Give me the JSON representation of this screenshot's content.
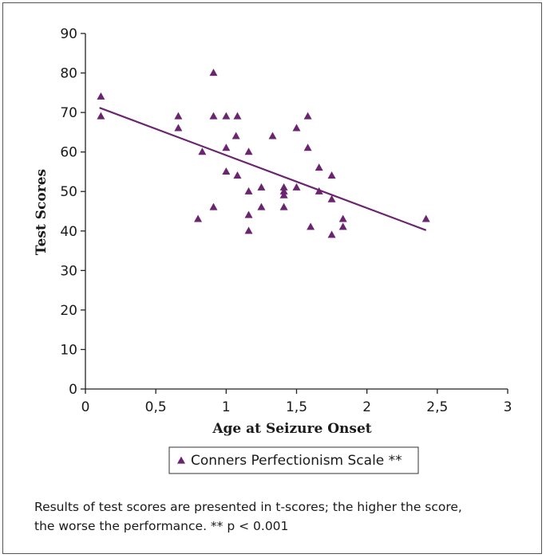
{
  "chart_data": {
    "type": "scatter",
    "xlabel": "Age at Seizure Onset",
    "ylabel": "Test Scores",
    "xlim": [
      0,
      3
    ],
    "ylim": [
      0,
      90
    ],
    "xticks": [
      "0",
      "0,5",
      "1",
      "1,5",
      "2",
      "2,5",
      "3"
    ],
    "yticks": [
      "0",
      "10",
      "20",
      "30",
      "40",
      "50",
      "60",
      "70",
      "80",
      "90"
    ],
    "grid": false,
    "legend_position": "bottom",
    "series": [
      {
        "name": "Conners Perfectionism Scale **",
        "color": "#6b2470",
        "marker": "triangle",
        "points": [
          [
            0.11,
            74
          ],
          [
            0.11,
            69
          ],
          [
            0.66,
            69
          ],
          [
            0.66,
            66
          ],
          [
            0.8,
            43
          ],
          [
            0.83,
            60
          ],
          [
            0.91,
            80
          ],
          [
            0.91,
            69
          ],
          [
            0.91,
            46
          ],
          [
            1.0,
            69
          ],
          [
            1.0,
            61
          ],
          [
            1.0,
            55
          ],
          [
            1.07,
            64
          ],
          [
            1.08,
            69
          ],
          [
            1.08,
            54
          ],
          [
            1.16,
            60
          ],
          [
            1.16,
            50
          ],
          [
            1.16,
            44
          ],
          [
            1.16,
            40
          ],
          [
            1.25,
            51
          ],
          [
            1.25,
            46
          ],
          [
            1.33,
            64
          ],
          [
            1.41,
            51
          ],
          [
            1.41,
            50
          ],
          [
            1.41,
            49
          ],
          [
            1.41,
            46
          ],
          [
            1.5,
            66
          ],
          [
            1.5,
            51
          ],
          [
            1.58,
            69
          ],
          [
            1.58,
            61
          ],
          [
            1.6,
            41
          ],
          [
            1.66,
            56
          ],
          [
            1.66,
            50
          ],
          [
            1.75,
            54
          ],
          [
            1.75,
            48
          ],
          [
            1.75,
            39
          ],
          [
            1.83,
            43
          ],
          [
            1.83,
            41
          ],
          [
            2.42,
            43
          ]
        ]
      }
    ],
    "trendline": {
      "start": [
        0.1,
        71.2
      ],
      "end": [
        2.42,
        40.2
      ]
    }
  },
  "caption_line1": "Results of test scores are presented in t-scores; the higher the score,",
  "caption_line2": "the worse the performance. ** p < 0.001"
}
